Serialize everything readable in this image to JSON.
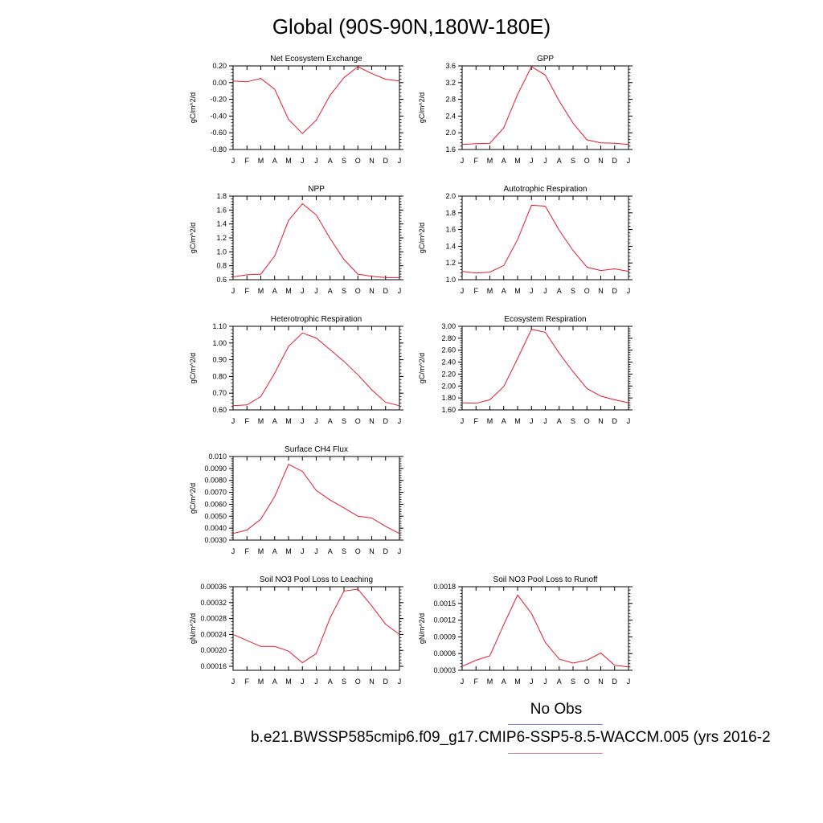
{
  "title": "Global (90S-90N,180W-180E)",
  "legend": {
    "obs_label": "No Obs",
    "obs_color": "#7b7bf0",
    "case_color": "#f08a8a"
  },
  "case_label": "b.e21.BWSSP585cmip6.f09_g17.CMIP6-SSP5-8.5-WACCM.005 (yrs 2016-2",
  "line_color": "#e8192c",
  "chart_data": [
    {
      "id": "nee",
      "type": "line",
      "title": "Net Ecosystem Exchange",
      "ylabel": "gC/m^2/d",
      "categories": [
        "J",
        "F",
        "M",
        "A",
        "M",
        "J",
        "J",
        "A",
        "S",
        "O",
        "N",
        "D",
        "J"
      ],
      "ylim": [
        -0.8,
        0.2
      ],
      "yticks": [
        0.2,
        0.0,
        -0.2,
        -0.4,
        -0.6,
        -0.8
      ],
      "ydecimals": 2,
      "values": [
        0.02,
        0.01,
        0.05,
        -0.08,
        -0.44,
        -0.61,
        -0.45,
        -0.15,
        0.06,
        0.19,
        0.11,
        0.04,
        0.02
      ]
    },
    {
      "id": "gpp",
      "type": "line",
      "title": "GPP",
      "ylabel": "gC/m^2/d",
      "categories": [
        "J",
        "F",
        "M",
        "A",
        "M",
        "J",
        "J",
        "A",
        "S",
        "O",
        "N",
        "D",
        "J"
      ],
      "ylim": [
        1.6,
        3.6
      ],
      "yticks": [
        3.6,
        3.2,
        2.8,
        2.4,
        2.0,
        1.6
      ],
      "ydecimals": 1,
      "values": [
        1.72,
        1.74,
        1.75,
        2.12,
        2.92,
        3.58,
        3.38,
        2.76,
        2.23,
        1.83,
        1.76,
        1.75,
        1.72
      ]
    },
    {
      "id": "npp",
      "type": "line",
      "title": "NPP",
      "ylabel": "gC/m^2/d",
      "categories": [
        "J",
        "F",
        "M",
        "A",
        "M",
        "J",
        "J",
        "A",
        "S",
        "O",
        "N",
        "D",
        "J"
      ],
      "ylim": [
        0.6,
        1.8
      ],
      "yticks": [
        1.8,
        1.6,
        1.4,
        1.2,
        1.0,
        0.8,
        0.6
      ],
      "ydecimals": 1,
      "values": [
        0.64,
        0.67,
        0.68,
        0.94,
        1.45,
        1.69,
        1.53,
        1.19,
        0.89,
        0.68,
        0.65,
        0.63,
        0.63
      ]
    },
    {
      "id": "ar",
      "type": "line",
      "title": "Autotrophic Respiration",
      "ylabel": "gC/m^2/d",
      "categories": [
        "J",
        "F",
        "M",
        "A",
        "M",
        "J",
        "J",
        "A",
        "S",
        "O",
        "N",
        "D",
        "J"
      ],
      "ylim": [
        1.0,
        2.0
      ],
      "yticks": [
        2.0,
        1.8,
        1.6,
        1.4,
        1.2,
        1.0
      ],
      "ydecimals": 1,
      "values": [
        1.1,
        1.08,
        1.09,
        1.17,
        1.48,
        1.89,
        1.88,
        1.59,
        1.35,
        1.15,
        1.11,
        1.13,
        1.1
      ]
    },
    {
      "id": "hr",
      "type": "line",
      "title": "Heterotrophic Respiration",
      "ylabel": "gC/m^2/d",
      "categories": [
        "J",
        "F",
        "M",
        "A",
        "M",
        "J",
        "J",
        "A",
        "S",
        "O",
        "N",
        "D",
        "J"
      ],
      "ylim": [
        0.6,
        1.1
      ],
      "yticks": [
        1.1,
        1.0,
        0.9,
        0.8,
        0.7,
        0.6
      ],
      "ydecimals": 2,
      "values": [
        0.625,
        0.63,
        0.68,
        0.82,
        0.98,
        1.06,
        1.03,
        0.96,
        0.89,
        0.81,
        0.72,
        0.645,
        0.625
      ]
    },
    {
      "id": "er",
      "type": "line",
      "title": "Ecosystem Respiration",
      "ylabel": "gC/m^2/d",
      "categories": [
        "J",
        "F",
        "M",
        "A",
        "M",
        "J",
        "J",
        "A",
        "S",
        "O",
        "N",
        "D",
        "J"
      ],
      "ylim": [
        1.6,
        3.0
      ],
      "yticks": [
        3.0,
        2.8,
        2.6,
        2.4,
        2.2,
        2.0,
        1.8,
        1.6
      ],
      "ydecimals": 2,
      "values": [
        1.72,
        1.71,
        1.77,
        1.99,
        2.46,
        2.95,
        2.9,
        2.55,
        2.24,
        1.96,
        1.83,
        1.77,
        1.72
      ]
    },
    {
      "id": "ch4",
      "type": "line",
      "title": "Surface CH4 Flux",
      "ylabel": "gC/m^2/d",
      "categories": [
        "J",
        "F",
        "M",
        "A",
        "M",
        "J",
        "J",
        "A",
        "S",
        "O",
        "N",
        "D",
        "J"
      ],
      "ylim": [
        0.003,
        0.01
      ],
      "yticks": [
        0.01,
        0.009,
        0.008,
        0.007,
        0.006,
        0.005,
        0.004,
        0.003
      ],
      "yticklabels": [
        "0.010",
        "0.0090",
        "0.0080",
        "0.0070",
        "0.0060",
        "0.0050",
        "0.0040",
        "0.0030"
      ],
      "values": [
        0.00355,
        0.00385,
        0.00475,
        0.00665,
        0.00935,
        0.00875,
        0.00715,
        0.00635,
        0.0057,
        0.005,
        0.00485,
        0.00415,
        0.00355
      ]
    },
    {
      "id": "leach",
      "type": "line",
      "title": "Soil NO3 Pool Loss to Leaching",
      "ylabel": "gN/m^2/d",
      "categories": [
        "J",
        "F",
        "M",
        "A",
        "M",
        "J",
        "J",
        "A",
        "S",
        "O",
        "N",
        "D",
        "J"
      ],
      "ylim": [
        0.00015,
        0.00036
      ],
      "yticks": [
        0.00036,
        0.00032,
        0.00028,
        0.00024,
        0.0002,
        0.00016
      ],
      "ydecimals": 5,
      "values": [
        0.00024,
        0.000225,
        0.00021,
        0.00021,
        0.000198,
        0.000169,
        0.000192,
        0.000282,
        0.000349,
        0.000354,
        0.000312,
        0.000266,
        0.00024
      ]
    },
    {
      "id": "runoff",
      "type": "line",
      "title": "Soil NO3 Pool Loss to Runoff",
      "ylabel": "gN/m^2/d",
      "categories": [
        "J",
        "F",
        "M",
        "A",
        "M",
        "J",
        "J",
        "A",
        "S",
        "O",
        "N",
        "D",
        "J"
      ],
      "ylim": [
        0.0003,
        0.0018
      ],
      "yticks": [
        0.0018,
        0.0015,
        0.0012,
        0.0009,
        0.0006,
        0.0003
      ],
      "ydecimals": 4,
      "values": [
        0.00037,
        0.00048,
        0.00056,
        0.00112,
        0.00165,
        0.00132,
        0.0008,
        0.0005,
        0.00043,
        0.00048,
        0.00061,
        0.00039,
        0.00036
      ]
    }
  ]
}
